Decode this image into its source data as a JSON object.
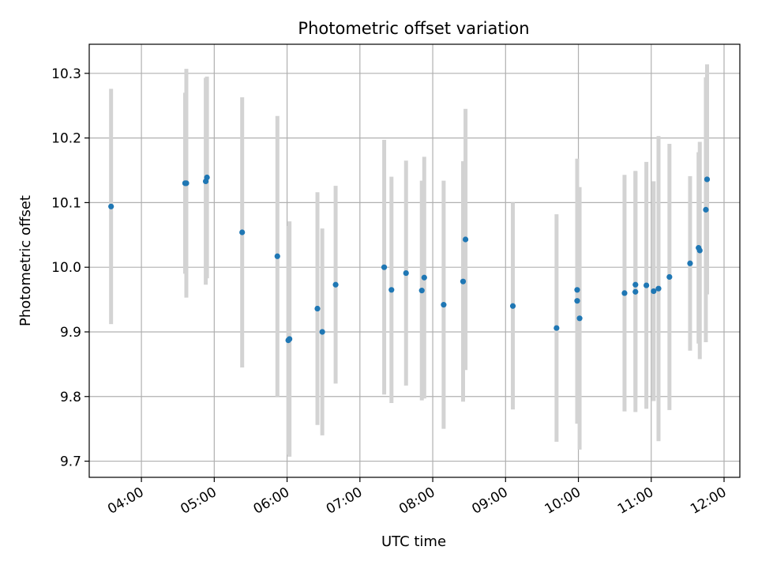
{
  "chart_data": {
    "type": "scatter",
    "title": "Photometric offset variation",
    "xlabel": "UTC time",
    "ylabel": "Photometric offset",
    "grid": true,
    "x_unit": "UTC time (HH:MM)",
    "xlim": [
      "03:17",
      "12:13"
    ],
    "ylim": [
      9.675,
      10.345
    ],
    "x_ticks": [
      "04:00",
      "05:00",
      "06:00",
      "07:00",
      "08:00",
      "09:00",
      "10:00",
      "11:00",
      "12:00"
    ],
    "y_ticks": [
      9.7,
      9.8,
      9.9,
      10.0,
      10.1,
      10.2,
      10.3
    ],
    "point_color": "#1f77b4",
    "errorbar_color": "#d3d3d3",
    "points": [
      {
        "x": "03:35",
        "y": 10.094,
        "err": 0.182
      },
      {
        "x": "04:36",
        "y": 10.13,
        "err": 0.14
      },
      {
        "x": "04:37",
        "y": 10.13,
        "err": 0.177
      },
      {
        "x": "04:53",
        "y": 10.133,
        "err": 0.16
      },
      {
        "x": "04:54",
        "y": 10.139,
        "err": 0.156
      },
      {
        "x": "05:23",
        "y": 10.054,
        "err": 0.209
      },
      {
        "x": "05:52",
        "y": 10.017,
        "err": 0.217
      },
      {
        "x": "06:01",
        "y": 9.887,
        "err": 0.177
      },
      {
        "x": "06:02",
        "y": 9.889,
        "err": 0.182
      },
      {
        "x": "06:25",
        "y": 9.936,
        "err": 0.18
      },
      {
        "x": "06:29",
        "y": 9.9,
        "err": 0.16
      },
      {
        "x": "06:40",
        "y": 9.973,
        "err": 0.153
      },
      {
        "x": "07:20",
        "y": 10.0,
        "err": 0.197
      },
      {
        "x": "07:26",
        "y": 9.965,
        "err": 0.175
      },
      {
        "x": "07:38",
        "y": 9.991,
        "err": 0.174
      },
      {
        "x": "07:51",
        "y": 9.964,
        "err": 0.17
      },
      {
        "x": "07:53",
        "y": 9.984,
        "err": 0.187
      },
      {
        "x": "08:09",
        "y": 9.942,
        "err": 0.192
      },
      {
        "x": "08:25",
        "y": 9.978,
        "err": 0.186
      },
      {
        "x": "08:27",
        "y": 10.043,
        "err": 0.202
      },
      {
        "x": "09:06",
        "y": 9.94,
        "err": 0.16
      },
      {
        "x": "09:42",
        "y": 9.906,
        "err": 0.176
      },
      {
        "x": "09:59",
        "y": 9.965,
        "err": 0.203
      },
      {
        "x": "09:59",
        "y": 9.948,
        "err": 0.19
      },
      {
        "x": "10:01",
        "y": 9.921,
        "err": 0.203
      },
      {
        "x": "10:38",
        "y": 9.96,
        "err": 0.183
      },
      {
        "x": "10:47",
        "y": 9.973,
        "err": 0.176
      },
      {
        "x": "10:47",
        "y": 9.962,
        "err": 0.186
      },
      {
        "x": "10:56",
        "y": 9.972,
        "err": 0.191
      },
      {
        "x": "11:02",
        "y": 9.963,
        "err": 0.17
      },
      {
        "x": "11:06",
        "y": 9.967,
        "err": 0.236
      },
      {
        "x": "11:15",
        "y": 9.985,
        "err": 0.206
      },
      {
        "x": "11:32",
        "y": 10.006,
        "err": 0.135
      },
      {
        "x": "11:39",
        "y": 10.03,
        "err": 0.148
      },
      {
        "x": "11:40",
        "y": 10.026,
        "err": 0.168
      },
      {
        "x": "11:45",
        "y": 10.089,
        "err": 0.205
      },
      {
        "x": "11:46",
        "y": 10.136,
        "err": 0.178
      }
    ]
  }
}
